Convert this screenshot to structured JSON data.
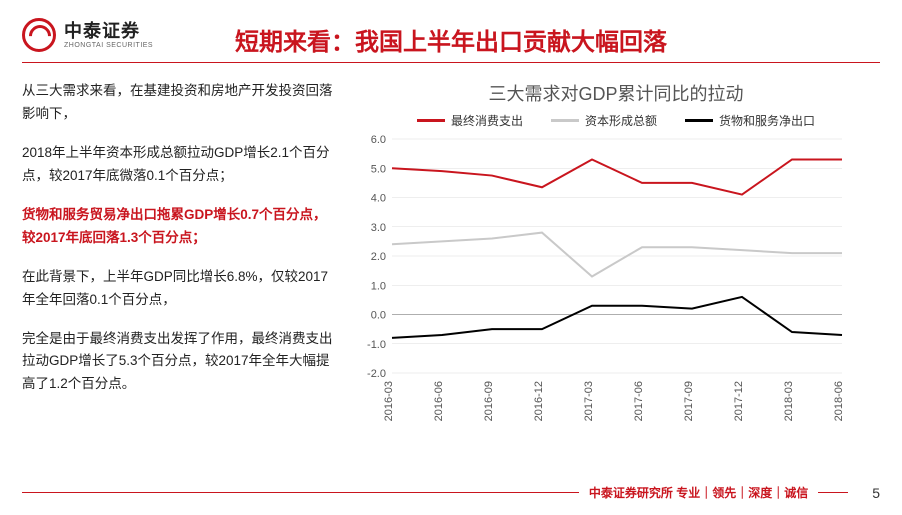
{
  "logo": {
    "cn": "中泰证券",
    "en": "ZHONGTAI SECURITIES"
  },
  "title": "短期来看：我国上半年出口贡献大幅回落",
  "paragraphs": [
    {
      "text": "从三大需求来看，在基建投资和房地产开发投资回落影响下，",
      "hl": false
    },
    {
      "text": "2018年上半年资本形成总额拉动GDP增长2.1个百分点，较2017年底微落0.1个百分点；",
      "hl": false
    },
    {
      "text": "货物和服务贸易净出口拖累GDP增长0.7个百分点，较2017年底回落1.3个百分点；",
      "hl": true
    },
    {
      "text": "在此背景下，上半年GDP同比增长6.8%，仅较2017年全年回落0.1个百分点，",
      "hl": false
    },
    {
      "text": "完全是由于最终消费支出发挥了作用，最终消费支出拉动GDP增长了5.3个百分点，较2017年全年大幅提高了1.2个百分点。",
      "hl": false
    }
  ],
  "chart": {
    "title": "三大需求对GDP累计同比的拉动",
    "type": "line",
    "categories": [
      "2016-03",
      "2016-06",
      "2016-09",
      "2016-12",
      "2017-03",
      "2017-06",
      "2017-09",
      "2017-12",
      "2018-03",
      "2018-06"
    ],
    "ylim": [
      -2.0,
      6.0
    ],
    "ytick_step": 1.0,
    "background": "#ffffff",
    "grid_color": "#dddddd",
    "axis_font_size": 11,
    "line_width": 2,
    "series": [
      {
        "name": "最终消费支出",
        "color": "#c9151e",
        "values": [
          5.0,
          4.9,
          4.75,
          4.35,
          5.3,
          4.5,
          4.5,
          4.1,
          5.3,
          5.3
        ]
      },
      {
        "name": "资本形成总额",
        "color": "#c9c9c9",
        "values": [
          2.4,
          2.5,
          2.6,
          2.8,
          1.3,
          2.3,
          2.3,
          2.2,
          2.1,
          2.1
        ]
      },
      {
        "name": "货物和服务净出口",
        "color": "#000000",
        "values": [
          -0.8,
          -0.7,
          -0.5,
          -0.5,
          0.3,
          0.3,
          0.2,
          0.6,
          -0.6,
          -0.7
        ]
      }
    ]
  },
  "footer": {
    "text": "中泰证券研究所 专业｜领先｜深度｜诚信",
    "page": "5"
  }
}
